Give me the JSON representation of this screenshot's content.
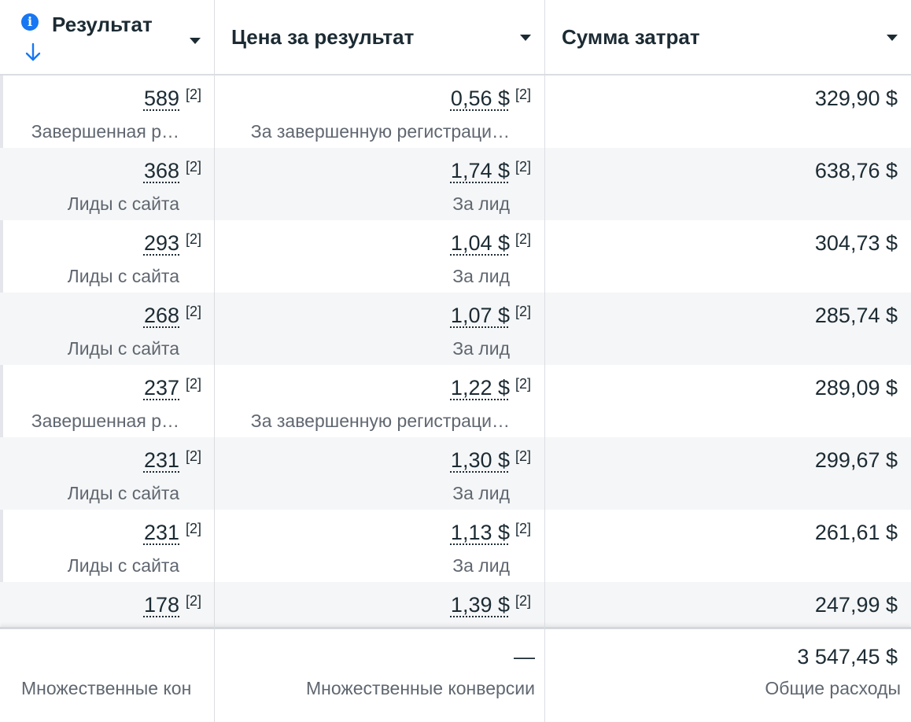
{
  "header": {
    "col1_title": "Результат",
    "col2_title": "Цена за результат",
    "col3_title": "Сумма затрат"
  },
  "rows": [
    {
      "result": "589",
      "result_note": "[2]",
      "result_type": "Завершенная р…",
      "cost": "0,56 $",
      "cost_note": "[2]",
      "cost_type": "За завершенную регистраци…",
      "spend": "329,90 $"
    },
    {
      "result": "368",
      "result_note": "[2]",
      "result_type": "Лиды с сайта",
      "cost": "1,74 $",
      "cost_note": "[2]",
      "cost_type": "За лид",
      "spend": "638,76 $"
    },
    {
      "result": "293",
      "result_note": "[2]",
      "result_type": "Лиды с сайта",
      "cost": "1,04 $",
      "cost_note": "[2]",
      "cost_type": "За лид",
      "spend": "304,73 $"
    },
    {
      "result": "268",
      "result_note": "[2]",
      "result_type": "Лиды с сайта",
      "cost": "1,07 $",
      "cost_note": "[2]",
      "cost_type": "За лид",
      "spend": "285,74 $"
    },
    {
      "result": "237",
      "result_note": "[2]",
      "result_type": "Завершенная р…",
      "cost": "1,22 $",
      "cost_note": "[2]",
      "cost_type": "За завершенную регистраци…",
      "spend": "289,09 $"
    },
    {
      "result": "231",
      "result_note": "[2]",
      "result_type": "Лиды с сайта",
      "cost": "1,30 $",
      "cost_note": "[2]",
      "cost_type": "За лид",
      "spend": "299,67 $"
    },
    {
      "result": "231",
      "result_note": "[2]",
      "result_type": "Лиды с сайта",
      "cost": "1,13 $",
      "cost_note": "[2]",
      "cost_type": "За лид",
      "spend": "261,61 $"
    },
    {
      "result": "178",
      "result_note": "[2]",
      "result_type": "",
      "cost": "1,39 $",
      "cost_note": "[2]",
      "cost_type": "",
      "spend": "247,99 $"
    }
  ],
  "footer": {
    "col1_sub": "Множественные кон",
    "col2_value": "—",
    "col2_sub": "Множественные конверсии",
    "col3_value": "3 547,45 $",
    "col3_sub": "Общие расходы"
  },
  "colors": {
    "accent": "#1877f2",
    "text": "#1c2b33",
    "muted": "#606770",
    "row_alt": "#f5f6f7",
    "border": "#dadde1"
  }
}
